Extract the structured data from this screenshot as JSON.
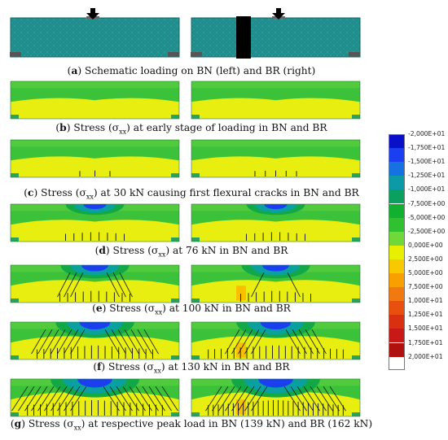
{
  "figure": {
    "captions": [
      {
        "letter": "a",
        "text": " Schematic loading on BN (left) and BR (right)"
      },
      {
        "letter": "b",
        "pre": " Stress (",
        "sym": "σ",
        "sub": "xx",
        "post": ") at early stage of loading in BN and BR"
      },
      {
        "letter": "c",
        "pre": " Stress (",
        "sym": "σ",
        "sub": "xx",
        "post": ") at 30 kN causing first flexural cracks in BN and BR"
      },
      {
        "letter": "d",
        "pre": " Stress (",
        "sym": "σ",
        "sub": "xx",
        "post": ") at 76 kN in BN and BR"
      },
      {
        "letter": "e",
        "pre": " Stress (",
        "sym": "σ",
        "sub": "xx",
        "post": ") at 100 kN in BN and BR"
      },
      {
        "letter": "f",
        "pre": " Stress (",
        "sym": "σ",
        "sub": "xx",
        "post": ") at 130 kN in BN and BR"
      },
      {
        "letter": "g",
        "pre": " Stress (",
        "sym": "σ",
        "sub": "xx",
        "post": ") at respective peak load in BN (139 kN) and BR (162 kN)"
      }
    ],
    "legend": {
      "labels": [
        "-2,000E+01",
        "-1,750E+01",
        "-1,500E+01",
        "-1,250E+01",
        "-1,000E+01",
        "-7,500E+00",
        "-5,000E+00",
        "-2,500E+00",
        "0,000E+00",
        "2,500E+00",
        "5,000E+00",
        "7,500E+00",
        "1,000E+01",
        "1,250E+01",
        "1,500E+01",
        "1,750E+01",
        "2,000E+01"
      ],
      "colors": [
        "#0a10c8",
        "#1a3ef0",
        "#1572e0",
        "#0c9aa8",
        "#0aa060",
        "#12b030",
        "#30c030",
        "#70d838",
        "#e8f000",
        "#f8c800",
        "#f8a000",
        "#f07a10",
        "#e85010",
        "#d83010",
        "#c81818",
        "#b01010",
        "#8a0808"
      ]
    },
    "stages": [
      {
        "id": "b",
        "spread": 0.05,
        "blue": 0.0,
        "cracks_bn": 0,
        "cracks_br": 0,
        "diag_bn": 0,
        "diag_br": 0
      },
      {
        "id": "c",
        "spread": 0.1,
        "blue": 0.0,
        "cracks_bn": 3,
        "cracks_br": 5,
        "diag_bn": 0,
        "diag_br": 0
      },
      {
        "id": "d",
        "spread": 0.35,
        "blue": 0.35,
        "cracks_bn": 8,
        "cracks_br": 8,
        "diag_bn": 0,
        "diag_br": 0
      },
      {
        "id": "e",
        "spread": 0.55,
        "blue": 0.55,
        "cracks_bn": 10,
        "cracks_br": 10,
        "diag_bn": 6,
        "diag_br": 2
      },
      {
        "id": "f",
        "spread": 0.75,
        "blue": 0.75,
        "cracks_bn": 18,
        "cracks_br": 22,
        "diag_bn": 14,
        "diag_br": 10
      },
      {
        "id": "g",
        "spread": 0.95,
        "blue": 0.95,
        "cracks_bn": 22,
        "cracks_br": 28,
        "diag_bn": 20,
        "diag_br": 16
      }
    ]
  }
}
